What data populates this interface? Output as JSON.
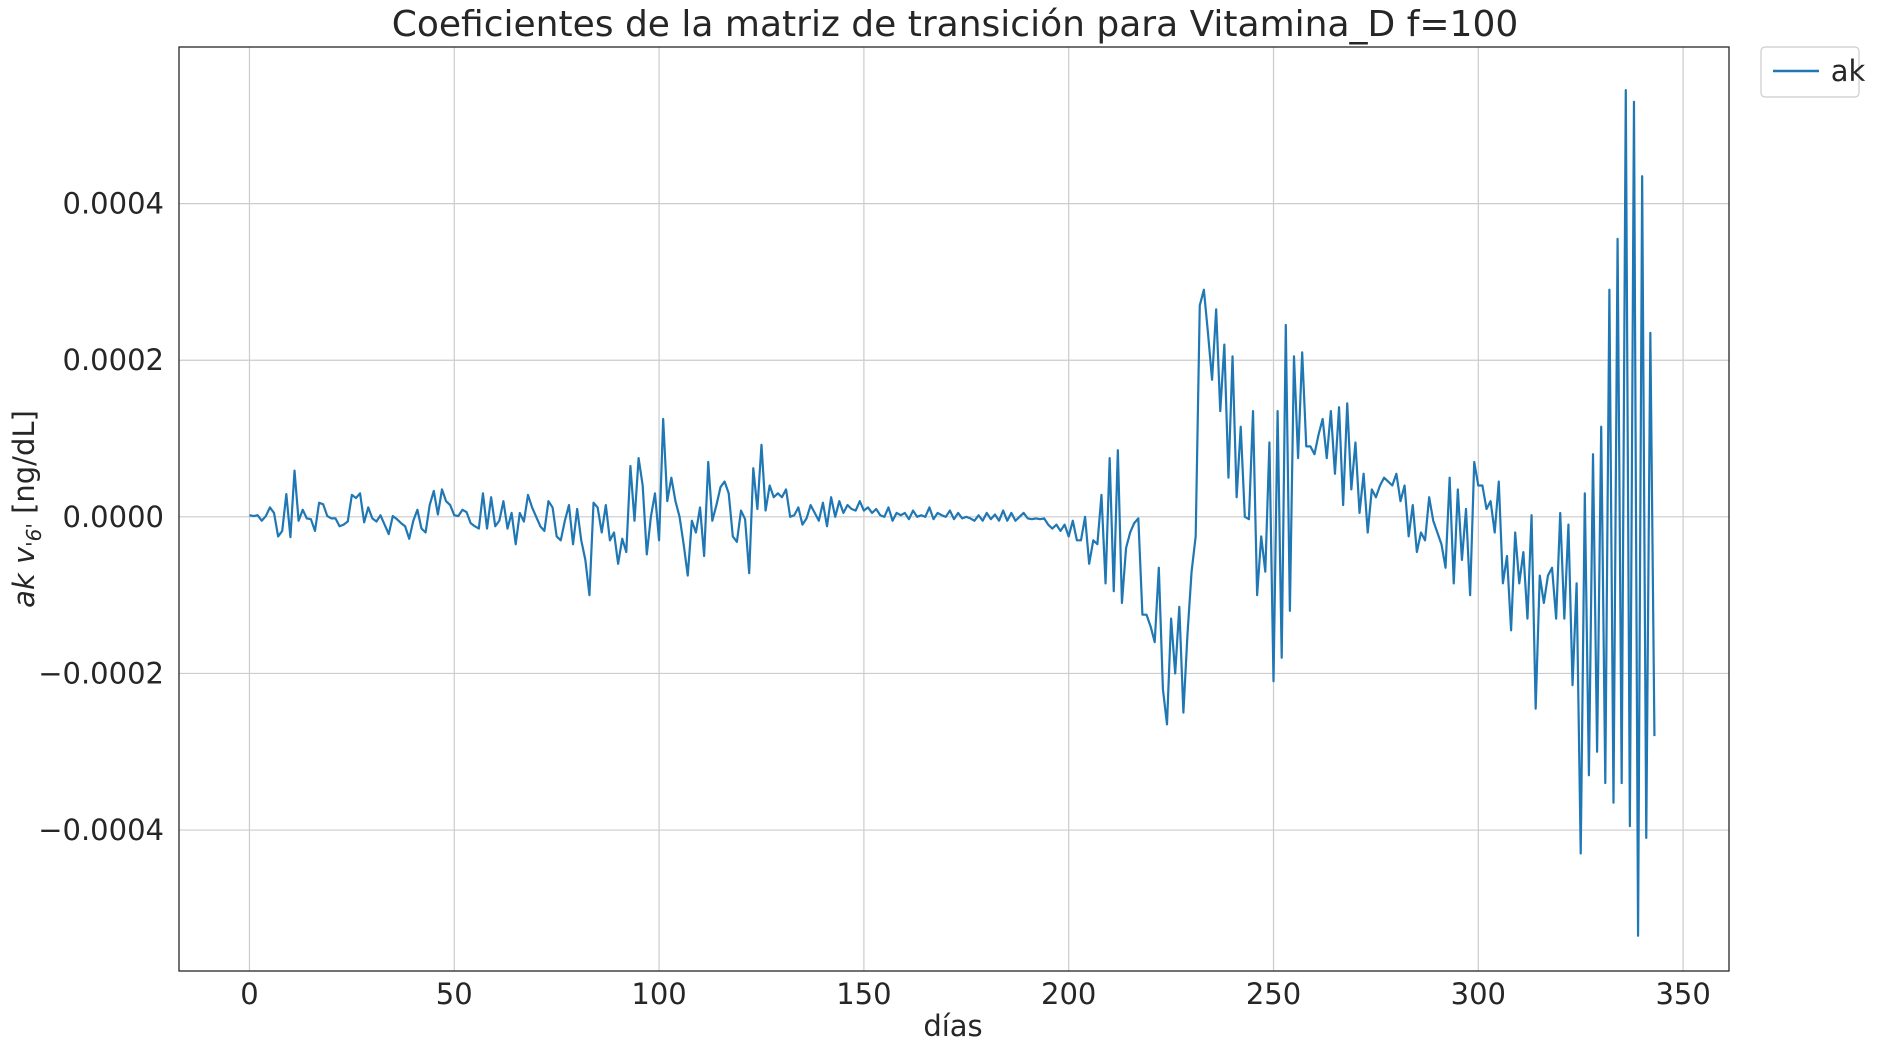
{
  "chart_data": {
    "type": "line",
    "title": "Coeficientes de la matriz de transición para Vitamina_D f=100",
    "xlabel": "días",
    "ylabel_italic": "ak v",
    "ylabel_sub": "'6'",
    "ylabel_unit": " [ng/dL]",
    "xlim": [
      -17.2,
      361.2
    ],
    "ylim": [
      -0.00058,
      0.0006
    ],
    "xticks": [
      0,
      50,
      100,
      150,
      200,
      250,
      300,
      350
    ],
    "yticks": [
      -0.0004,
      -0.0002,
      0.0,
      0.0002,
      0.0004
    ],
    "xtick_labels": [
      "0",
      "50",
      "100",
      "150",
      "200",
      "250",
      "300",
      "350"
    ],
    "ytick_labels": [
      "−0.0004",
      "−0.0002",
      "0.0000",
      "0.0002",
      "0.0004"
    ],
    "grid": true,
    "legend": {
      "placement": "outside-top-right",
      "entries": [
        "ak"
      ]
    },
    "series_color": "#1f77b4",
    "series": [
      {
        "name": "ak",
        "x_start": 0,
        "x_step": 1,
        "values": [
          2e-06,
          1e-06,
          2e-06,
          -5e-06,
          1e-06,
          1.2e-05,
          5e-06,
          -2.5e-05,
          -1.8e-05,
          2.9e-05,
          -2.6e-05,
          5.9e-05,
          -5e-06,
          9e-06,
          -2e-06,
          -3e-06,
          -1.8e-05,
          1.8e-05,
          1.6e-05,
          1e-06,
          -2e-06,
          -2e-06,
          -1.2e-05,
          -1e-05,
          -6e-06,
          2.8e-05,
          2.4e-05,
          3e-05,
          -7e-06,
          1.2e-05,
          -2e-06,
          -6e-06,
          2e-06,
          -1e-05,
          -2.2e-05,
          1e-06,
          -3e-06,
          -8e-06,
          -1.2e-05,
          -2.8e-05,
          -5e-06,
          9e-06,
          -1.5e-05,
          -2e-05,
          1.5e-05,
          3.3e-05,
          3e-06,
          3.5e-05,
          2e-05,
          1.5e-05,
          2e-06,
          1e-06,
          9e-06,
          6e-06,
          -8e-06,
          -1.2e-05,
          -1.5e-05,
          3e-05,
          -1.5e-05,
          2.5e-05,
          -1.2e-05,
          -5e-06,
          2e-05,
          -1.5e-05,
          5e-06,
          -3.5e-05,
          5e-06,
          -6e-06,
          2.8e-05,
          1.2e-05,
          0.0,
          -1.2e-05,
          -1.8e-05,
          2e-05,
          1.2e-05,
          -2.5e-05,
          -3e-05,
          -5e-06,
          1.5e-05,
          -3.5e-05,
          1e-05,
          -3e-05,
          -5.5e-05,
          -0.0001,
          1.8e-05,
          1.2e-05,
          -2e-05,
          1.5e-05,
          -3e-05,
          -2e-05,
          -6e-05,
          -2.8e-05,
          -4.5e-05,
          6.5e-05,
          -5e-06,
          7.5e-05,
          4e-05,
          -4.8e-05,
          0.0,
          3e-05,
          -3e-05,
          0.000125,
          2e-05,
          5e-05,
          2e-05,
          0.0,
          -3.5e-05,
          -7.5e-05,
          -5e-06,
          -2e-05,
          1.2e-05,
          -5e-05,
          7e-05,
          -5e-06,
          1.5e-05,
          3.8e-05,
          4.5e-05,
          3e-05,
          -2.5e-05,
          -3.2e-05,
          8e-06,
          -3e-06,
          -7.2e-05,
          6.2e-05,
          1e-05,
          9.2e-05,
          8e-06,
          4e-05,
          2.5e-05,
          3e-05,
          2.5e-05,
          3.5e-05,
          0.0,
          2e-06,
          1.2e-05,
          -1e-05,
          -2e-06,
          1.5e-05,
          5e-06,
          -5e-06,
          1.8e-05,
          -1.2e-05,
          2.5e-05,
          0.0,
          2e-05,
          5e-06,
          1.5e-05,
          1e-05,
          8e-06,
          2e-05,
          8e-06,
          1.2e-05,
          5e-06,
          1e-05,
          2e-06,
          0.0,
          1.2e-05,
          -5e-06,
          5e-06,
          2e-06,
          5e-06,
          -3e-06,
          8e-06,
          0.0,
          2e-06,
          0.0,
          1.2e-05,
          -3e-06,
          5e-06,
          2e-06,
          0.0,
          8e-06,
          -3e-06,
          5e-06,
          -2e-06,
          0.0,
          -2e-06,
          -5e-06,
          2e-06,
          -5e-06,
          5e-06,
          -3e-06,
          3e-06,
          -5e-06,
          8e-06,
          -5e-06,
          5e-06,
          -5e-06,
          0.0,
          5e-06,
          -2e-06,
          -3e-06,
          -2e-06,
          -3e-06,
          -2e-06,
          -1e-05,
          -1.5e-05,
          -1e-05,
          -1.8e-05,
          -1e-05,
          -2.5e-05,
          -5e-06,
          -3e-05,
          -3e-05,
          0.0,
          -6e-05,
          -3e-05,
          -3.5e-05,
          2.8e-05,
          -8.5e-05,
          7.5e-05,
          -9.5e-05,
          8.5e-05,
          -0.00011,
          -4e-05,
          -2e-05,
          -8e-06,
          -2e-06,
          -0.000125,
          -0.000125,
          -0.00014,
          -0.00016,
          -6.5e-05,
          -0.00022,
          -0.000265,
          -0.00013,
          -0.0002,
          -0.000115,
          -0.00025,
          -0.00015,
          -7e-05,
          -2.5e-05,
          0.00027,
          0.00029,
          0.000235,
          0.000175,
          0.000265,
          0.000135,
          0.00022,
          5e-05,
          0.000205,
          2.5e-05,
          0.000115,
          0.0,
          -3e-06,
          0.000135,
          -0.0001,
          -2.5e-05,
          -7e-05,
          9.5e-05,
          -0.00021,
          0.000135,
          -0.00018,
          0.000245,
          -0.00012,
          0.000205,
          7.5e-05,
          0.00021,
          9e-05,
          9e-05,
          8e-05,
          0.000105,
          0.000125,
          7.5e-05,
          0.000135,
          5.5e-05,
          0.00014,
          1.5e-05,
          0.000145,
          3.5e-05,
          9.5e-05,
          5e-06,
          5.5e-05,
          -2e-05,
          3.5e-05,
          2.5e-05,
          4e-05,
          5e-05,
          4.5e-05,
          4e-05,
          5.5e-05,
          2e-05,
          4e-05,
          -2.5e-05,
          1.5e-05,
          -4.5e-05,
          -2e-05,
          -3e-05,
          2.5e-05,
          -5e-06,
          -2e-05,
          -3.5e-05,
          -6.5e-05,
          5e-05,
          -8.5e-05,
          3.5e-05,
          -5.5e-05,
          1e-05,
          -0.0001,
          7e-05,
          4e-05,
          4e-05,
          1e-05,
          2e-05,
          -2e-05,
          4.5e-05,
          -8.5e-05,
          -5e-05,
          -0.000145,
          -2e-05,
          -8.5e-05,
          -4.5e-05,
          -0.00013,
          2e-06,
          -0.000245,
          -7.5e-05,
          -0.00011,
          -7.5e-05,
          -6.5e-05,
          -0.00013,
          5e-06,
          -0.00013,
          -1e-05,
          -0.000215,
          -8.5e-05,
          -0.00043,
          3e-05,
          -0.00033,
          8e-05,
          -0.0003,
          0.000115,
          -0.00034,
          0.00029,
          -0.000365,
          0.000355,
          -0.00034,
          0.000545,
          -0.000395,
          0.00053,
          -0.000535,
          0.000435,
          -0.00041,
          0.000235,
          -0.00028
        ]
      }
    ]
  }
}
